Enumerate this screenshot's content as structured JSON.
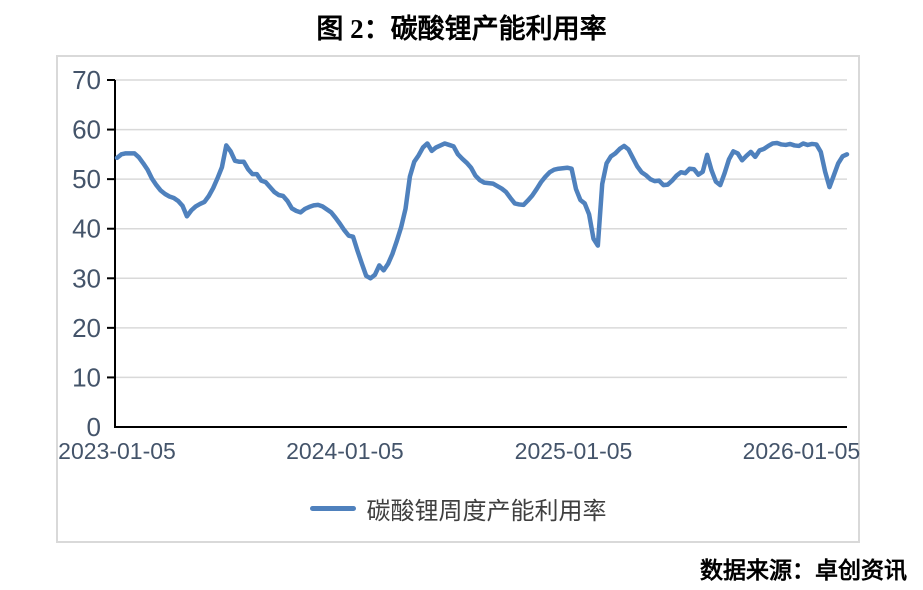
{
  "figure": {
    "title": "图 2：碳酸锂产能利用率",
    "source": "数据来源：卓创资讯"
  },
  "chart_data": {
    "type": "line",
    "title": "图 2：碳酸锂产能利用率",
    "x_start": "2023-01-05",
    "x_interval": "weekly",
    "x_tick_labels": [
      "2023-01-05",
      "2024-01-05",
      "2025-01-05",
      "2026-01-05"
    ],
    "x_tick_week_positions": [
      0,
      52.14,
      104.43,
      156.57
    ],
    "y_ticks": [
      0,
      10,
      20,
      30,
      40,
      50,
      60,
      70
    ],
    "ylim": [
      0,
      70
    ],
    "grid": "horizontal",
    "legend_position": "bottom",
    "series": [
      {
        "name": "碳酸锂周度产能利用率",
        "color": "#4F81BD",
        "values": [
          54.3,
          55.0,
          55.2,
          55.2,
          55.2,
          54.4,
          53.2,
          51.9,
          50.1,
          48.8,
          47.7,
          47.0,
          46.5,
          46.2,
          45.6,
          44.6,
          42.5,
          43.7,
          44.5,
          45.0,
          45.4,
          46.6,
          48.2,
          50.2,
          52.4,
          56.8,
          55.6,
          53.7,
          53.5,
          53.5,
          52.0,
          51.0,
          51.0,
          49.7,
          49.4,
          48.4,
          47.4,
          46.8,
          46.6,
          45.6,
          44.1,
          43.6,
          43.3,
          44.0,
          44.4,
          44.7,
          44.8,
          44.5,
          43.9,
          43.3,
          42.2,
          41.0,
          39.7,
          38.6,
          38.4,
          35.6,
          33.0,
          30.5,
          30.0,
          30.7,
          32.6,
          31.6,
          32.9,
          34.9,
          37.5,
          40.3,
          44.0,
          50.5,
          53.5,
          54.8,
          56.4,
          57.2,
          55.7,
          56.4,
          56.8,
          57.2,
          56.9,
          56.6,
          55.0,
          54.1,
          53.3,
          52.3,
          50.7,
          49.8,
          49.3,
          49.2,
          49.1,
          48.6,
          48.1,
          47.4,
          46.2,
          45.1,
          44.9,
          44.8,
          45.7,
          46.7,
          48.0,
          49.4,
          50.5,
          51.4,
          51.9,
          52.1,
          52.2,
          52.3,
          52.1,
          48.0,
          45.8,
          45.1,
          42.9,
          38.0,
          36.6,
          49.0,
          53.2,
          54.6,
          55.2,
          56.1,
          56.7,
          56.0,
          54.3,
          52.6,
          51.4,
          50.8,
          50.0,
          49.6,
          49.7,
          48.8,
          48.9,
          49.7,
          50.7,
          51.4,
          51.2,
          52.1,
          52.0,
          50.9,
          51.5,
          54.9,
          51.8,
          49.5,
          48.8,
          51.2,
          54.0,
          55.6,
          55.2,
          53.8,
          54.7,
          55.5,
          54.5,
          55.8,
          56.1,
          56.7,
          57.2,
          57.3,
          57.0,
          56.9,
          57.1,
          56.8,
          56.7,
          57.2,
          56.9,
          57.1,
          57.0,
          55.5,
          51.5,
          48.4,
          50.8,
          53.2,
          54.6,
          55.0
        ]
      }
    ],
    "colors": {
      "grid": "#D9D9D9",
      "axis": "#000000",
      "tick_label": "#44546A",
      "frame_border": "#D9D9D9",
      "legend_text": "#3F3F3F"
    }
  }
}
